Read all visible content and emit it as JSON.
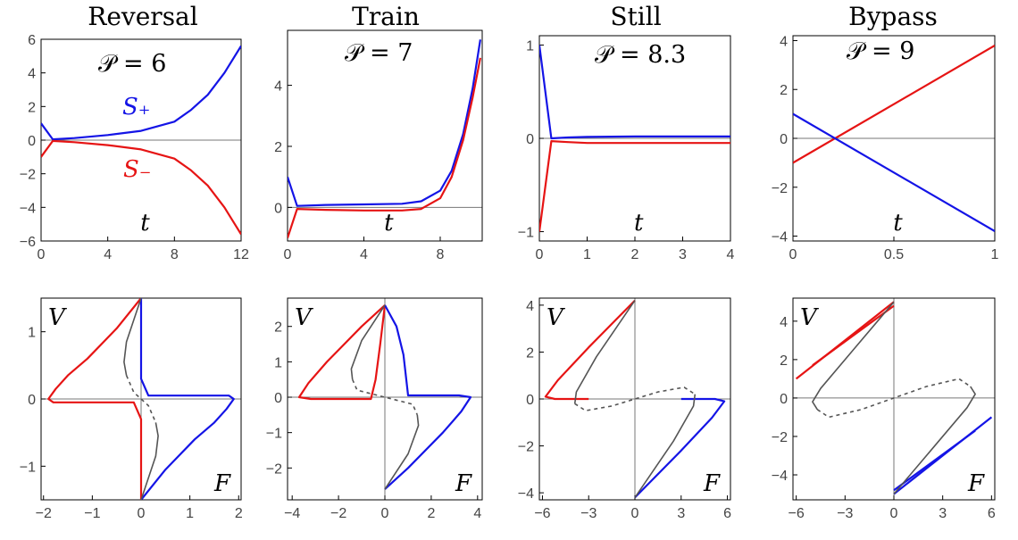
{
  "colors": {
    "blue": "#1414e6",
    "red": "#e61414",
    "gray": "#555555",
    "axis": "#777777"
  },
  "chart_data": [
    {
      "type": "line",
      "title": "Reversal",
      "annotation": "𝒫 = 6",
      "xlabel": "t",
      "xlim": [
        0,
        12
      ],
      "ylim": [
        -6,
        6
      ],
      "xticks": [
        "0",
        "4",
        "8",
        "12"
      ],
      "yticks": [
        "-6",
        "-4",
        "-2",
        "0",
        "2",
        "4",
        "6"
      ],
      "series": [
        {
          "name": "S₊",
          "color": "blue",
          "x": [
            0,
            0.7,
            2,
            4,
            6,
            8,
            9,
            10,
            11,
            12
          ],
          "y": [
            1.0,
            0.05,
            0.12,
            0.3,
            0.55,
            1.1,
            1.8,
            2.7,
            4.0,
            5.6
          ]
        },
        {
          "name": "S₋",
          "color": "red",
          "x": [
            0,
            0.7,
            2,
            4,
            6,
            8,
            9,
            10,
            11,
            12
          ],
          "y": [
            -1.0,
            -0.05,
            -0.12,
            -0.3,
            -0.55,
            -1.1,
            -1.8,
            -2.7,
            -4.0,
            -5.6
          ]
        }
      ]
    },
    {
      "type": "line",
      "title": "Train",
      "annotation": "𝒫 = 7",
      "xlabel": "t",
      "xlim": [
        0,
        10.2
      ],
      "ylim": [
        -1.1,
        5.8
      ],
      "xticks": [
        "0",
        "4",
        "8"
      ],
      "yticks": [
        "0",
        "2",
        "4"
      ],
      "series": [
        {
          "color": "blue",
          "x": [
            0,
            0.5,
            2,
            4,
            6,
            7,
            8,
            8.6,
            9.2,
            9.7,
            10.1
          ],
          "y": [
            1.0,
            0.05,
            0.08,
            0.1,
            0.12,
            0.2,
            0.55,
            1.2,
            2.4,
            3.9,
            5.5
          ]
        },
        {
          "color": "red",
          "x": [
            0,
            0.5,
            2,
            4,
            6,
            7,
            8,
            8.6,
            9.2,
            9.7,
            10.1
          ],
          "y": [
            -1.0,
            -0.05,
            -0.08,
            -0.1,
            -0.1,
            -0.05,
            0.3,
            1.0,
            2.2,
            3.6,
            4.9
          ]
        }
      ]
    },
    {
      "type": "line",
      "title": "Still",
      "annotation": "𝒫 = 8.3",
      "xlabel": "t",
      "xlim": [
        0,
        4
      ],
      "ylim": [
        -1.1,
        1.1
      ],
      "xticks": [
        "0",
        "1",
        "2",
        "3",
        "4"
      ],
      "yticks": [
        "-1",
        "0",
        "1"
      ],
      "series": [
        {
          "color": "blue",
          "x": [
            0,
            0.25,
            0.6,
            1,
            2,
            3,
            4
          ],
          "y": [
            1.0,
            0.0,
            0.01,
            0.015,
            0.02,
            0.02,
            0.02
          ]
        },
        {
          "color": "red",
          "x": [
            0,
            0.25,
            0.6,
            1,
            2,
            3,
            4
          ],
          "y": [
            -1.0,
            -0.03,
            -0.04,
            -0.05,
            -0.05,
            -0.05,
            -0.05
          ]
        }
      ]
    },
    {
      "type": "line",
      "title": "Bypass",
      "annotation": "𝒫 = 9",
      "xlabel": "t",
      "xlim": [
        0,
        1
      ],
      "ylim": [
        -4.2,
        4.2
      ],
      "xticks": [
        "0",
        "0.5",
        "1"
      ],
      "yticks": [
        "-4",
        "-2",
        "0",
        "2",
        "4"
      ],
      "series": [
        {
          "color": "red",
          "x": [
            0,
            1
          ],
          "y": [
            -1.0,
            3.8
          ]
        },
        {
          "color": "blue",
          "x": [
            0,
            1
          ],
          "y": [
            1.0,
            -3.8
          ]
        }
      ]
    },
    {
      "type": "line",
      "xlabel": "F",
      "ylabel": "V",
      "xlim": [
        -2.05,
        2.05
      ],
      "ylim": [
        -1.5,
        1.5
      ],
      "xticks": [
        "-2",
        "-1",
        "0",
        "1",
        "2"
      ],
      "yticks": [
        "-1",
        "0",
        "1"
      ],
      "series": [
        {
          "color": "red",
          "x": [
            0,
            -0.5,
            -1.1,
            -1.5,
            -1.75,
            -1.9,
            -1.8,
            -1.0,
            -0.15,
            0,
            0
          ],
          "y": [
            1.5,
            1.05,
            0.6,
            0.35,
            0.15,
            0.0,
            -0.05,
            -0.05,
            -0.05,
            -0.3,
            -1.5
          ]
        },
        {
          "color": "blue",
          "x": [
            0,
            0.5,
            1.1,
            1.5,
            1.75,
            1.9,
            1.8,
            1.0,
            0.15,
            0,
            0
          ],
          "y": [
            -1.5,
            -1.05,
            -0.6,
            -0.35,
            -0.15,
            0.0,
            0.05,
            0.05,
            0.05,
            0.3,
            1.5
          ]
        },
        {
          "color": "gray",
          "x": [
            0,
            -0.3,
            -0.35,
            -0.3
          ],
          "y": [
            1.5,
            0.85,
            0.55,
            0.35
          ]
        },
        {
          "color": "gray",
          "x": [
            0,
            0.3,
            0.35,
            0.3
          ],
          "y": [
            -1.5,
            -0.85,
            -0.55,
            -0.35
          ]
        },
        {
          "color": "gray",
          "dashed": true,
          "x": [
            -0.3,
            -0.15,
            0.15,
            0.3
          ],
          "y": [
            0.35,
            0.1,
            -0.1,
            -0.35
          ]
        }
      ]
    },
    {
      "type": "line",
      "xlabel": "F",
      "ylabel": "V",
      "xlim": [
        -4.2,
        4.2
      ],
      "ylim": [
        -2.9,
        2.8
      ],
      "xticks": [
        "-4",
        "-2",
        "0",
        "2",
        "4"
      ],
      "yticks": [
        "-2",
        "-1",
        "0",
        "1",
        "2"
      ],
      "series": [
        {
          "color": "red",
          "x": [
            0,
            -1.0,
            -2.5,
            -3.3,
            -3.7,
            -3.2,
            -1.5,
            -0.6,
            -0.4,
            -0.2,
            0
          ],
          "y": [
            2.6,
            2.0,
            1.0,
            0.4,
            0.0,
            -0.05,
            -0.05,
            -0.05,
            0.5,
            1.5,
            2.6
          ]
        },
        {
          "color": "blue",
          "x": [
            0,
            0.5,
            0.8,
            1.0,
            1.5,
            3.2,
            3.7,
            3.3,
            2.5,
            1.0,
            0
          ],
          "y": [
            2.6,
            2.0,
            1.2,
            0.05,
            0.05,
            0.05,
            0.0,
            -0.4,
            -1.0,
            -2.0,
            -2.6
          ]
        },
        {
          "color": "gray",
          "x": [
            0,
            -1.0,
            -1.45,
            -1.4
          ],
          "y": [
            2.6,
            1.6,
            0.8,
            0.5
          ]
        },
        {
          "color": "gray",
          "x": [
            0,
            1.0,
            1.45,
            1.4
          ],
          "y": [
            -2.6,
            -1.6,
            -0.8,
            -0.5
          ]
        },
        {
          "color": "gray",
          "dashed": true,
          "x": [
            -1.4,
            -1.2,
            0,
            1.2,
            1.4
          ],
          "y": [
            0.5,
            0.2,
            0,
            -0.2,
            -0.5
          ]
        }
      ]
    },
    {
      "type": "line",
      "xlabel": "F",
      "ylabel": "V",
      "xlim": [
        -6.2,
        6.2
      ],
      "ylim": [
        -4.3,
        4.3
      ],
      "xticks": [
        "-6",
        "-3",
        "0",
        "3",
        "6"
      ],
      "yticks": [
        "-4",
        "-2",
        "0",
        "2",
        "4"
      ],
      "series": [
        {
          "color": "red",
          "x": [
            0,
            -3.0,
            -5.0,
            -5.8,
            -5.2,
            -3.0
          ],
          "y": [
            4.2,
            2.2,
            0.8,
            0.1,
            0.0,
            0.0
          ]
        },
        {
          "color": "blue",
          "x": [
            0,
            3.0,
            5.0,
            5.8,
            5.2,
            3.0
          ],
          "y": [
            -4.2,
            -2.2,
            -0.8,
            -0.1,
            0.0,
            0.0
          ]
        },
        {
          "color": "gray",
          "x": [
            0,
            -2.5,
            -3.8,
            -3.9
          ],
          "y": [
            4.2,
            1.8,
            0.3,
            -0.2
          ]
        },
        {
          "color": "gray",
          "x": [
            0,
            2.5,
            3.8,
            3.9
          ],
          "y": [
            -4.2,
            -1.8,
            -0.3,
            0.2
          ]
        },
        {
          "color": "gray",
          "dashed": true,
          "x": [
            -3.9,
            -3.2,
            -1.5,
            0,
            1.5,
            3.2,
            3.9
          ],
          "y": [
            -0.2,
            -0.5,
            -0.3,
            0,
            0.3,
            0.5,
            0.2
          ]
        }
      ]
    },
    {
      "type": "line",
      "xlabel": "F",
      "ylabel": "V",
      "xlim": [
        -6.2,
        6.2
      ],
      "ylim": [
        -5.3,
        5.2
      ],
      "xticks": [
        "-6",
        "-3",
        "0",
        "3",
        "6"
      ],
      "yticks": [
        "-4",
        "-2",
        "0",
        "2",
        "4"
      ],
      "series": [
        {
          "color": "red",
          "x": [
            -6,
            0
          ],
          "y": [
            1.0,
            5.0
          ]
        },
        {
          "color": "red",
          "x": [
            -5.0,
            0
          ],
          "y": [
            1.7,
            4.8
          ]
        },
        {
          "color": "blue",
          "x": [
            6,
            0
          ],
          "y": [
            -1.0,
            -5.0
          ]
        },
        {
          "color": "blue",
          "x": [
            5.0,
            0
          ],
          "y": [
            -1.7,
            -4.8
          ]
        },
        {
          "color": "gray",
          "x": [
            0,
            -2.5,
            -4.5,
            -5.0,
            -4.7
          ],
          "y": [
            5.0,
            2.5,
            0.5,
            -0.2,
            -0.6
          ]
        },
        {
          "color": "gray",
          "x": [
            0,
            2.5,
            4.5,
            5.0,
            4.7
          ],
          "y": [
            -5.0,
            -2.5,
            -0.5,
            0.2,
            0.6
          ]
        },
        {
          "color": "gray",
          "dashed": true,
          "x": [
            -4.7,
            -4.0,
            -2.0,
            0,
            2.0,
            4.0,
            4.7
          ],
          "y": [
            -0.6,
            -1.0,
            -0.6,
            0,
            0.6,
            1.0,
            0.6
          ]
        }
      ]
    }
  ],
  "labels": {
    "s_plus": "S₊",
    "s_minus": "S₋"
  }
}
